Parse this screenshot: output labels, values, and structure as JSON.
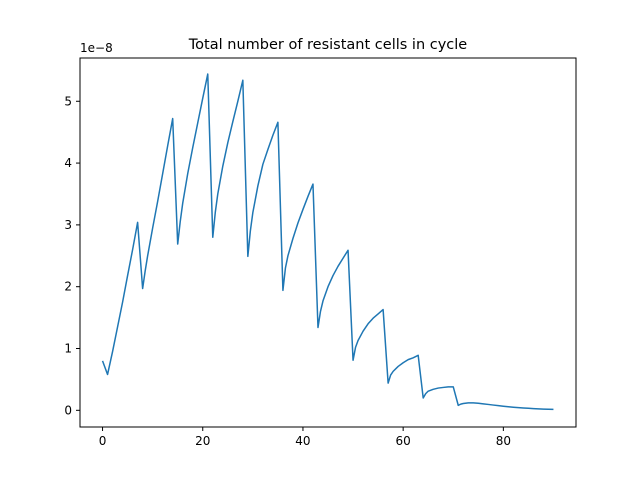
{
  "chart_data": {
    "type": "line",
    "title": "Total number of resistant cells in cycle",
    "xlabel": "",
    "ylabel": "",
    "y_offset_label": "1e−8",
    "xlim": [
      -4.5,
      94.5
    ],
    "ylim": [
      -0.27,
      5.7
    ],
    "x_ticks": [
      0,
      20,
      40,
      60,
      80
    ],
    "x_tick_labels": [
      "0",
      "20",
      "40",
      "60",
      "80"
    ],
    "y_ticks": [
      0,
      1,
      2,
      3,
      4,
      5
    ],
    "y_tick_labels": [
      "0",
      "1",
      "2",
      "3",
      "4",
      "5"
    ],
    "grid": false,
    "line_color": "#1f77b4",
    "series": [
      {
        "name": "",
        "x": [
          0,
          1,
          2,
          3,
          4,
          5,
          6,
          7,
          8,
          8.5,
          9,
          10,
          11,
          12,
          13,
          14,
          15,
          15.5,
          16,
          17,
          18,
          19,
          20,
          21,
          22,
          22.5,
          23,
          24,
          25,
          26,
          27,
          28,
          29,
          29.5,
          30,
          31,
          32,
          33,
          34,
          35,
          36,
          36.5,
          37,
          38,
          39,
          40,
          41,
          42,
          43,
          43.5,
          44,
          45,
          46,
          47,
          48,
          49,
          50,
          50.5,
          51,
          52,
          53,
          54,
          55,
          56,
          57,
          57.5,
          58,
          59,
          60,
          61,
          62,
          63,
          64,
          64.5,
          65,
          66,
          67,
          68,
          69,
          70,
          71,
          71.5,
          72,
          73,
          74,
          75,
          76,
          77,
          78,
          79,
          80,
          81,
          82,
          83,
          84,
          85,
          86,
          87,
          88,
          89,
          90
        ],
        "values": [
          0.8,
          0.58,
          0.95,
          1.35,
          1.75,
          2.18,
          2.6,
          3.04,
          1.97,
          2.25,
          2.5,
          2.95,
          3.38,
          3.83,
          4.28,
          4.72,
          2.69,
          3.05,
          3.35,
          3.83,
          4.25,
          4.65,
          5.05,
          5.44,
          2.8,
          3.2,
          3.5,
          3.95,
          4.33,
          4.67,
          5.0,
          5.34,
          2.49,
          2.9,
          3.2,
          3.63,
          3.98,
          4.22,
          4.45,
          4.66,
          1.94,
          2.3,
          2.5,
          2.78,
          3.03,
          3.25,
          3.46,
          3.66,
          1.34,
          1.6,
          1.77,
          2.0,
          2.18,
          2.33,
          2.46,
          2.59,
          0.81,
          1.02,
          1.13,
          1.28,
          1.4,
          1.49,
          1.56,
          1.63,
          0.44,
          0.57,
          0.63,
          0.71,
          0.77,
          0.82,
          0.85,
          0.89,
          0.2,
          0.27,
          0.31,
          0.34,
          0.36,
          0.37,
          0.38,
          0.38,
          0.08,
          0.1,
          0.11,
          0.12,
          0.12,
          0.115,
          0.105,
          0.095,
          0.085,
          0.075,
          0.065,
          0.057,
          0.05,
          0.044,
          0.038,
          0.033,
          0.028,
          0.024,
          0.02,
          0.017,
          0.015
        ]
      }
    ]
  }
}
